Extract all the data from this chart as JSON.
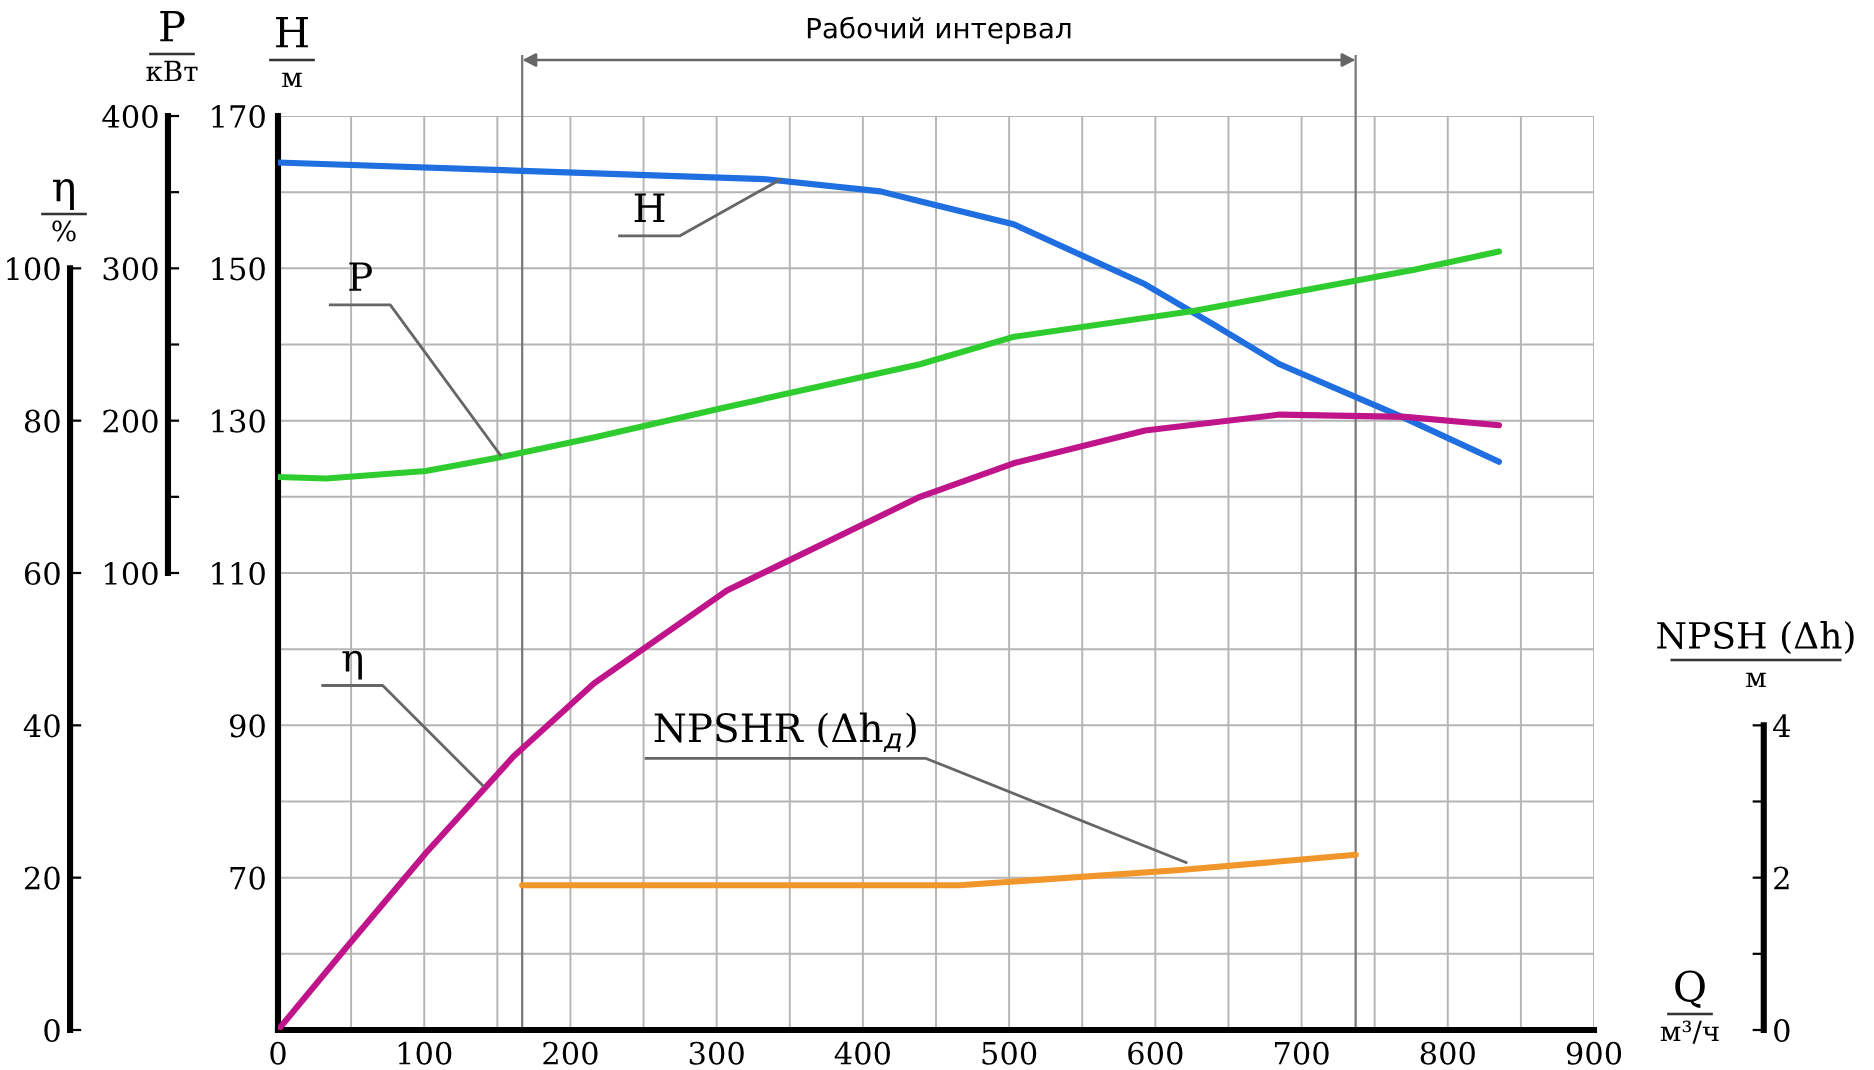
{
  "chart_data": [
    {
      "type": "line",
      "xlabel": "Q\nм³/ч",
      "ylabel": "H\nм",
      "y2label": "P\nкВт",
      "y3label": "η\n%",
      "xlim": [
        0,
        900
      ],
      "xticks": [
        0,
        {
          "value": 50,
          "label": null
        },
        100,
        {
          "value": 150,
          "label": null
        },
        200,
        {
          "value": 250,
          "label": null
        },
        300,
        {
          "value": 350,
          "label": null
        },
        400,
        {
          "value": 450,
          "label": null
        },
        500,
        {
          "value": 550,
          "label": null
        },
        600,
        {
          "value": 650,
          "label": null
        },
        700,
        {
          "value": 750,
          "label": null
        },
        800,
        {
          "value": 850,
          "label": null
        },
        900
      ],
      "ylim": [
        50,
        170
      ],
      "yticks": [
        {
          "value": 50,
          "label": null
        },
        {
          "value": 60,
          "label": null
        },
        70,
        {
          "value": 80,
          "label": null
        },
        90,
        {
          "value": 100,
          "label": null
        },
        110,
        {
          "value": 120,
          "label": null
        },
        130,
        {
          "value": 140,
          "label": null
        },
        150,
        {
          "value": 160,
          "label": null
        },
        170
      ],
      "y2lim": [
        -200,
        400
      ],
      "y2ticks": [
        100,
        {
          "value": 150,
          "label": null
        },
        200,
        {
          "value": 250,
          "label": null
        },
        300,
        {
          "value": 350,
          "label": null
        },
        400
      ],
      "y3lim": [
        0,
        120
      ],
      "y3ticks": [
        0,
        20,
        40,
        60,
        80,
        100
      ],
      "grid": true,
      "series": [
        {
          "axis": "y",
          "color": "#1f6fe0",
          "x": [
            0,
            334,
            412,
            439,
            503,
            593,
            640,
            685,
            771,
            835
          ],
          "values": [
            163.9,
            161.7,
            160.1,
            158.8,
            155.8,
            147.9,
            142.6,
            137.4,
            130.3,
            124.6
          ]
        },
        {
          "axis": "y2",
          "color": "#2ecc2e",
          "x": [
            0,
            33,
            101,
            152,
            216,
            307,
            439,
            503,
            626,
            777,
            835
          ],
          "values": [
            163,
            162,
            167,
            176,
            189,
            209,
            237,
            255,
            272,
            299,
            311
          ]
        },
        {
          "axis": "y3",
          "color": "#c0158a",
          "x": [
            0,
            47,
            101,
            161,
            216,
            307,
            439,
            503,
            593,
            685,
            771,
            835
          ],
          "values": [
            0,
            10.9,
            23.2,
            35.9,
            45.5,
            57.7,
            70,
            74.4,
            78.7,
            80.8,
            80.5,
            79.4
          ]
        }
      ],
      "annotations": [
        {
          "text": "H",
          "x": 343,
          "y": 161.6
        },
        {
          "text": "P",
          "x": 152,
          "y": 125.5
        },
        {
          "text": "η",
          "x": 140,
          "y": 82.1
        },
        "Рабочий интервал"
      ],
      "ref_lines": [
        {
          "axis": "x",
          "value": 167
        },
        {
          "axis": "x",
          "value": 737
        }
      ]
    },
    {
      "type": "line",
      "ylabel": "NPSH (Δh)\nм",
      "xlim": [
        0,
        900
      ],
      "ylim": [
        0,
        12
      ],
      "yticks": [
        0,
        {
          "value": 1,
          "label": null
        },
        2,
        {
          "value": 3,
          "label": null
        },
        4
      ],
      "tick_labels": "y",
      "series": [
        {
          "color": "#f0962a",
          "x": [
            167,
            466,
            617,
            737
          ],
          "values": [
            1.9,
            1.9,
            2.1,
            2.3
          ]
        }
      ],
      "annotations": [
        {
          "text": "NPSHR (Δh$_{д}$)",
          "x": 621,
          "y": 2.2
        }
      ]
    }
  ]
}
